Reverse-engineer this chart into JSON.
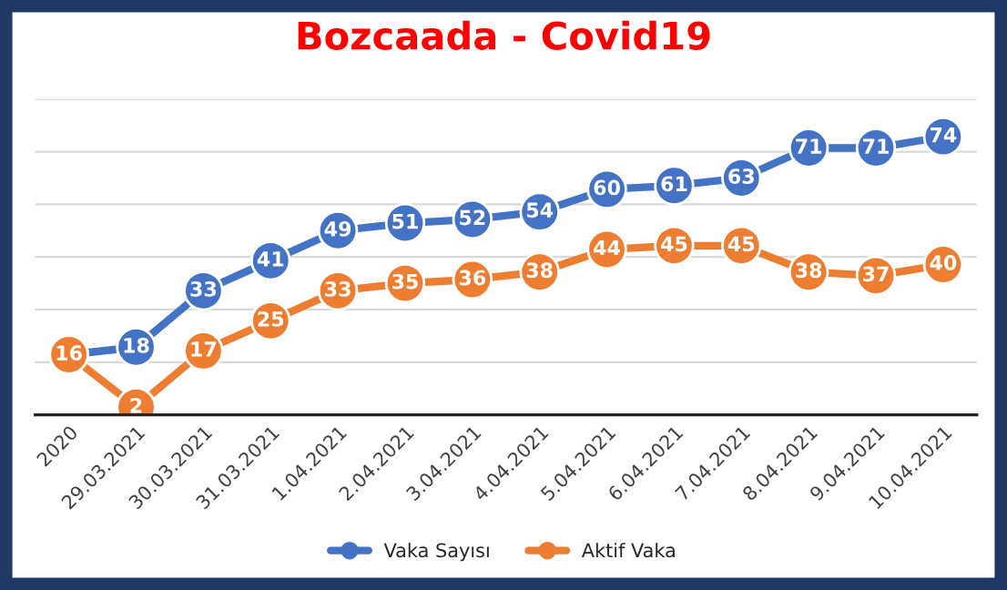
{
  "chart_data": {
    "type": "line",
    "title": "Bozcaada - Covid19",
    "categories": [
      "2020",
      "29.03.2021",
      "30.03.2021",
      "31.03.2021",
      "1.04.2021",
      "2.04.2021",
      "3.04.2021",
      "4.04.2021",
      "5.04.2021",
      "6.04.2021",
      "7.04.2021",
      "8.04.2021",
      "9.04.2021",
      "10.04.2021"
    ],
    "series": [
      {
        "name": "Vaka Sayısı",
        "color": "#4472c4",
        "values": [
          16,
          18,
          33,
          41,
          49,
          51,
          52,
          54,
          60,
          61,
          63,
          71,
          71,
          74
        ],
        "value_labels": [
          null,
          "18",
          "33",
          "41",
          "49",
          "51",
          "52",
          "54",
          "60",
          "61",
          "63",
          "71",
          "71",
          "74"
        ]
      },
      {
        "name": "Aktif Vaka",
        "color": "#ed7d31",
        "values": [
          16,
          2,
          17,
          25,
          33,
          35,
          36,
          38,
          44,
          45,
          45,
          38,
          37,
          40
        ],
        "value_labels": [
          "16",
          "2",
          "17",
          "25",
          "33",
          "35",
          "36",
          "38",
          "44",
          "45",
          "45",
          "38",
          "37",
          "40"
        ]
      }
    ],
    "ylim": [
      0,
      84
    ],
    "yticks": [
      {
        "value": 0,
        "label": null
      },
      {
        "value": 14,
        "label": null
      },
      {
        "value": 28,
        "label": null
      },
      {
        "value": 42,
        "label": null
      },
      {
        "value": 56,
        "label": null
      },
      {
        "value": 70,
        "label": null
      },
      {
        "value": 84,
        "label": null
      }
    ],
    "tick_labels": "x",
    "grid": "y",
    "legend": "bottom",
    "marker": "circle",
    "line_style": "solid"
  }
}
